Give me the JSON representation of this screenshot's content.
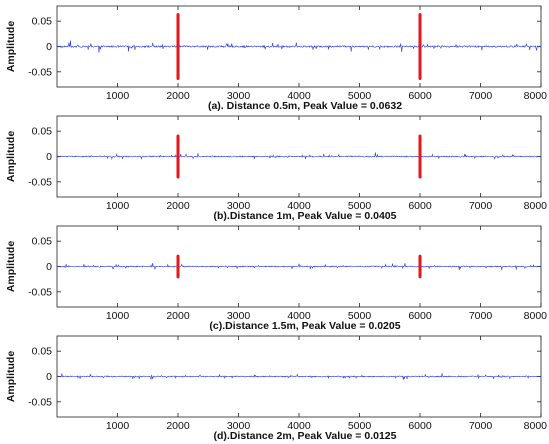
{
  "chart_data": [
    {
      "type": "line",
      "caption": "(a). Distance 0.5m, Peak Value = 0.0632",
      "ylabel": "Amplitude",
      "xlim": [
        0,
        8000
      ],
      "ylim": [
        -0.08,
        0.08
      ],
      "x_ticks": [
        "1000",
        "2000",
        "3000",
        "4000",
        "5000",
        "6000",
        "7000",
        "8000"
      ],
      "y_ticks": [
        "0.05",
        "0",
        "-0.05"
      ],
      "noise_amplitude": 0.006,
      "peaks": [
        {
          "x": 2000,
          "value": 0.0632
        },
        {
          "x": 6000,
          "value": 0.0632
        }
      ],
      "series_colors": {
        "signal": "#2b3bd9",
        "peak": "#e8161b"
      }
    },
    {
      "type": "line",
      "caption": "(b).Distance 1m,  Peak Value =  0.0405",
      "ylabel": "Amplitude",
      "xlim": [
        0,
        8000
      ],
      "ylim": [
        -0.08,
        0.08
      ],
      "x_ticks": [
        "1000",
        "2000",
        "3000",
        "4000",
        "5000",
        "6000",
        "7000",
        "8000"
      ],
      "y_ticks": [
        "0.05",
        "0",
        "-0.05"
      ],
      "noise_amplitude": 0.004,
      "peaks": [
        {
          "x": 2000,
          "value": 0.0405
        },
        {
          "x": 6000,
          "value": 0.0405
        }
      ],
      "series_colors": {
        "signal": "#2b3bd9",
        "peak": "#e8161b"
      }
    },
    {
      "type": "line",
      "caption": "(c).Distance 1.5m,  Peak Value = 0.0205",
      "ylabel": "Amplitude",
      "xlim": [
        0,
        8000
      ],
      "ylim": [
        -0.08,
        0.08
      ],
      "x_ticks": [
        "1000",
        "2000",
        "3000",
        "4000",
        "5000",
        "6000",
        "7000",
        "8000"
      ],
      "y_ticks": [
        "0.05",
        "0",
        "-0.05"
      ],
      "noise_amplitude": 0.004,
      "peaks": [
        {
          "x": 2000,
          "value": 0.0205
        },
        {
          "x": 6000,
          "value": 0.0205
        }
      ],
      "series_colors": {
        "signal": "#2b3bd9",
        "peak": "#e8161b"
      }
    },
    {
      "type": "line",
      "caption": "(d).Distance 2m, Peak Value =  0.0125",
      "ylabel": "Amplitude",
      "xlim": [
        0,
        8000
      ],
      "ylim": [
        -0.08,
        0.08
      ],
      "x_ticks": [
        "1000",
        "2000",
        "3000",
        "4000",
        "5000",
        "6000",
        "7000",
        "8000"
      ],
      "y_ticks": [
        "0.05",
        "0",
        "-0.05"
      ],
      "noise_amplitude": 0.004,
      "peaks": [],
      "series_colors": {
        "signal": "#2b3bd9",
        "peak": "#e8161b"
      }
    }
  ]
}
